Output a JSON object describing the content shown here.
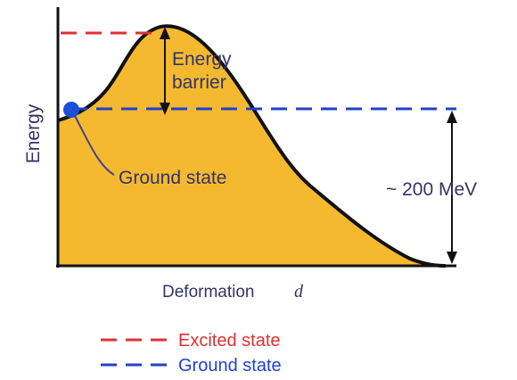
{
  "diagram": {
    "y_axis_label": "Energy",
    "x_axis_label": "Deformation",
    "x_axis_symbol": "d",
    "barrier_label_line1": "Energy",
    "barrier_label_line2": "barrier",
    "ground_state_label": "Ground state",
    "energy_gap_label": "~ 200 MeV"
  },
  "legend": {
    "items": [
      {
        "label": "Excited state",
        "color": "#e03030",
        "style": "dashed"
      },
      {
        "label": "Ground state",
        "color": "#2040d0",
        "style": "dashed"
      }
    ]
  },
  "colors": {
    "fill": "#f5b930",
    "curve": "#111111",
    "excited": "#e03030",
    "ground": "#2040d0",
    "label": "#333366",
    "pointer": "#444488",
    "dot": "#1a4fd8"
  }
}
